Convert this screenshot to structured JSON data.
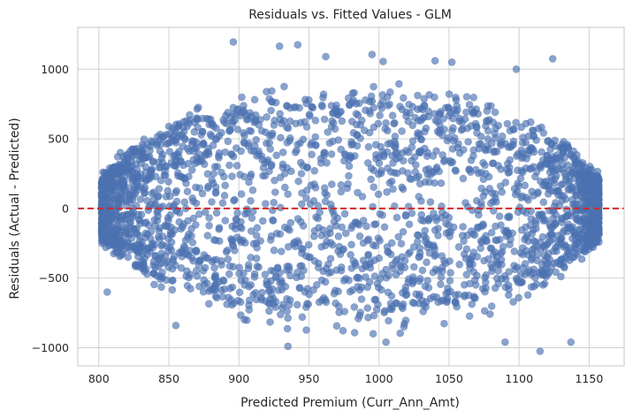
{
  "chart_data": {
    "type": "scatter",
    "title": "Residuals vs. Fitted Values - GLM",
    "xlabel": "Predicted Premium (Curr_Ann_Amt)",
    "ylabel": "Residuals (Actual - Predicted)",
    "xlim": [
      785,
      1175
    ],
    "ylim": [
      -1130,
      1300
    ],
    "xticks": [
      800,
      850,
      900,
      950,
      1000,
      1050,
      1100,
      1150
    ],
    "yticks": [
      -1000,
      -500,
      0,
      500,
      1000
    ],
    "grid": true,
    "reference_line": {
      "y": 0,
      "color": "#d62728",
      "style": "dashed"
    },
    "point_color": "#4c72b0",
    "point_opacity": 0.65,
    "cloud": {
      "x_range": [
        802,
        1157
      ],
      "typical_residual_band": [
        -750,
        800
      ],
      "description_of_shape": "dense elliptical cloud centered on 0"
    },
    "outliers": [
      {
        "x": 896,
        "y": 1195
      },
      {
        "x": 929,
        "y": 1165
      },
      {
        "x": 942,
        "y": 1175
      },
      {
        "x": 962,
        "y": 1090
      },
      {
        "x": 995,
        "y": 1105
      },
      {
        "x": 1003,
        "y": 1055
      },
      {
        "x": 1040,
        "y": 1060
      },
      {
        "x": 1052,
        "y": 1050
      },
      {
        "x": 1098,
        "y": 1000
      },
      {
        "x": 1124,
        "y": 1075
      },
      {
        "x": 1148,
        "y": 290
      },
      {
        "x": 1156,
        "y": 265
      },
      {
        "x": 803,
        "y": 260
      },
      {
        "x": 806,
        "y": -600
      },
      {
        "x": 855,
        "y": -840
      },
      {
        "x": 935,
        "y": -990
      },
      {
        "x": 1005,
        "y": -960
      },
      {
        "x": 1090,
        "y": -960
      },
      {
        "x": 1115,
        "y": -1025
      },
      {
        "x": 1137,
        "y": -960
      }
    ]
  }
}
